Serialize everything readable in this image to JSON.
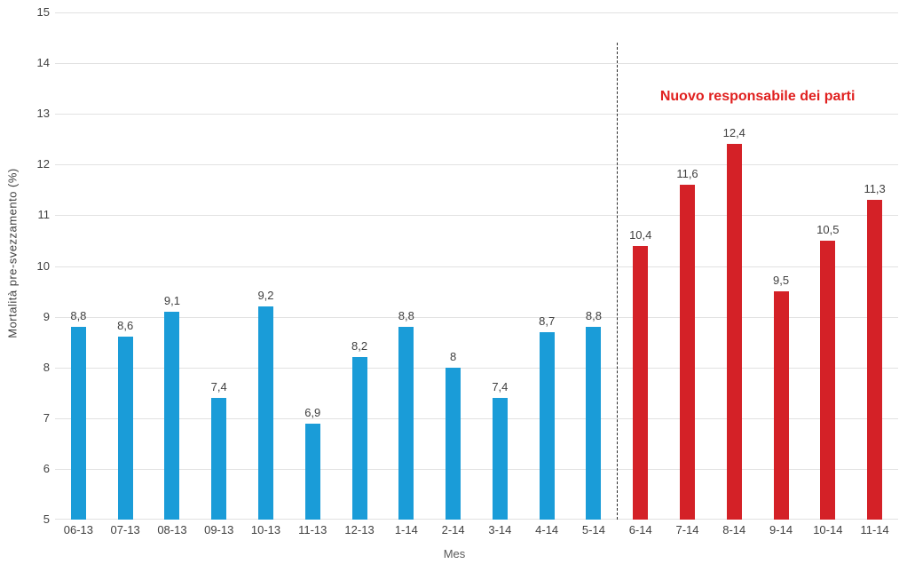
{
  "chart_data": {
    "type": "bar",
    "xlabel": "Mes",
    "ylabel": "Mortalità pre-svezzamento (%)",
    "ylim": [
      5,
      15
    ],
    "yticks": [
      5,
      6,
      7,
      8,
      9,
      10,
      11,
      12,
      13,
      14,
      15
    ],
    "grid": true,
    "legend_position": "none",
    "categories": [
      "06-13",
      "07-13",
      "08-13",
      "09-13",
      "10-13",
      "11-13",
      "12-13",
      "1-14",
      "2-14",
      "3-14",
      "4-14",
      "5-14",
      "6-14",
      "7-14",
      "8-14",
      "9-14",
      "10-14",
      "11-14"
    ],
    "values": [
      8.8,
      8.6,
      9.1,
      7.4,
      9.2,
      6.9,
      8.2,
      8.8,
      8,
      7.4,
      8.7,
      8.8,
      10.4,
      11.6,
      12.4,
      9.5,
      10.5,
      11.3
    ],
    "value_labels": [
      "8,8",
      "8,6",
      "9,1",
      "7,4",
      "9,2",
      "6,9",
      "8,2",
      "8,8",
      "8",
      "7,4",
      "8,7",
      "8,8",
      "10,4",
      "11,6",
      "12,4",
      "9,5",
      "10,5",
      "11,3"
    ],
    "split_index": 12,
    "divider": {
      "style": "dashed",
      "after_category": "5-14"
    },
    "annotation": {
      "text": "Nuovo responsabile dei parti",
      "color": "#e0201f",
      "applies_from_category": "6-14"
    },
    "colors": {
      "bars_before_divider": "#1a9cd8",
      "bars_after_divider": "#d42127",
      "gridline": "#e2e2e2",
      "tick_text": "#404040",
      "axis_title_text": "#595959",
      "divider_line": "#2b2b2b"
    }
  }
}
